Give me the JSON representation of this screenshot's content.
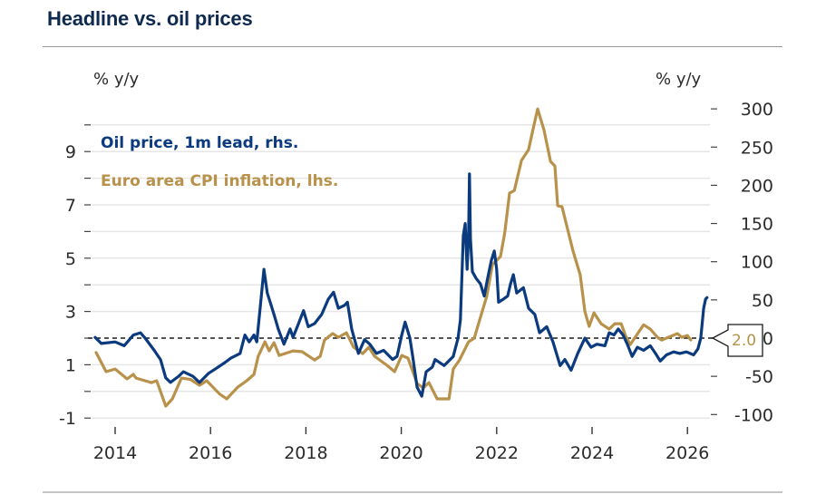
{
  "header": {
    "title": "Headline vs. oil prices"
  },
  "chart_data": {
    "type": "line",
    "title": "Headline vs. oil prices",
    "left_axis": {
      "unit_label": "% y/y",
      "range": [
        -1,
        10
      ],
      "tick_labels": [
        "-1",
        "1",
        "3",
        "5",
        "7",
        "9"
      ],
      "tick_values": [
        -1,
        0,
        1,
        2,
        3,
        4,
        5,
        6,
        7,
        8,
        9,
        10
      ]
    },
    "right_axis": {
      "unit_label": "% y/y",
      "range": [
        -100,
        300
      ],
      "tick_labels": [
        "-100",
        "-50",
        "0",
        "50",
        "100",
        "150",
        "200",
        "250",
        "300"
      ],
      "tick_values": [
        -100,
        -50,
        0,
        50,
        100,
        150,
        200,
        250,
        300
      ]
    },
    "x_axis": {
      "range": [
        2013.5,
        2026.6
      ],
      "tick_labels": [
        "2014",
        "2016",
        "2018",
        "2020",
        "2022",
        "2024",
        "2026"
      ],
      "tick_values": [
        2014,
        2016,
        2018,
        2020,
        2022,
        2024,
        2026
      ]
    },
    "grid": true,
    "legend_position": "top-left",
    "reference_line": {
      "value": 2.0,
      "axis": "left",
      "style": "dashed",
      "label": "2.0"
    },
    "series": [
      {
        "name": "Oil price, 1m lead, rhs.",
        "axis": "right",
        "color": "#0b3a7e",
        "points": [
          [
            2013.58,
            1
          ],
          [
            2013.71,
            -7
          ],
          [
            2014.0,
            -5
          ],
          [
            2014.19,
            -10
          ],
          [
            2014.38,
            4
          ],
          [
            2014.53,
            7
          ],
          [
            2014.63,
            0
          ],
          [
            2014.82,
            -16
          ],
          [
            2014.95,
            -28
          ],
          [
            2015.06,
            -52
          ],
          [
            2015.16,
            -58
          ],
          [
            2015.33,
            -50
          ],
          [
            2015.43,
            -44
          ],
          [
            2015.63,
            -50
          ],
          [
            2015.77,
            -58
          ],
          [
            2015.96,
            -46
          ],
          [
            2016.11,
            -40
          ],
          [
            2016.3,
            -32
          ],
          [
            2016.43,
            -26
          ],
          [
            2016.62,
            -20
          ],
          [
            2016.72,
            4
          ],
          [
            2016.81,
            -5
          ],
          [
            2016.91,
            4
          ],
          [
            2016.97,
            -5
          ],
          [
            2017.04,
            39
          ],
          [
            2017.12,
            90
          ],
          [
            2017.19,
            59
          ],
          [
            2017.25,
            47
          ],
          [
            2017.33,
            31
          ],
          [
            2017.42,
            12
          ],
          [
            2017.54,
            -8
          ],
          [
            2017.67,
            12
          ],
          [
            2017.73,
            1
          ],
          [
            2017.82,
            15
          ],
          [
            2017.95,
            36
          ],
          [
            2018.05,
            15
          ],
          [
            2018.18,
            19
          ],
          [
            2018.33,
            31
          ],
          [
            2018.47,
            51
          ],
          [
            2018.58,
            60
          ],
          [
            2018.68,
            39
          ],
          [
            2018.81,
            43
          ],
          [
            2018.87,
            47
          ],
          [
            2018.96,
            12
          ],
          [
            2019.1,
            -20
          ],
          [
            2019.23,
            -2
          ],
          [
            2019.34,
            -8
          ],
          [
            2019.48,
            -20
          ],
          [
            2019.63,
            -16
          ],
          [
            2019.82,
            -28
          ],
          [
            2019.91,
            -24
          ],
          [
            2020.01,
            4
          ],
          [
            2020.08,
            21
          ],
          [
            2020.18,
            0
          ],
          [
            2020.24,
            -24
          ],
          [
            2020.33,
            -64
          ],
          [
            2020.43,
            -76
          ],
          [
            2020.52,
            -44
          ],
          [
            2020.65,
            -38
          ],
          [
            2020.71,
            -28
          ],
          [
            2020.9,
            -36
          ],
          [
            2021.09,
            -24
          ],
          [
            2021.19,
            0
          ],
          [
            2021.24,
            24
          ],
          [
            2021.3,
            134
          ],
          [
            2021.34,
            150
          ],
          [
            2021.38,
            90
          ],
          [
            2021.41,
            134
          ],
          [
            2021.43,
            215
          ],
          [
            2021.45,
            130
          ],
          [
            2021.49,
            87
          ],
          [
            2021.57,
            78
          ],
          [
            2021.66,
            71
          ],
          [
            2021.74,
            55
          ],
          [
            2021.81,
            78
          ],
          [
            2021.89,
            102
          ],
          [
            2021.95,
            114
          ],
          [
            2022.0,
            90
          ],
          [
            2022.04,
            47
          ],
          [
            2022.14,
            51
          ],
          [
            2022.23,
            55
          ],
          [
            2022.29,
            71
          ],
          [
            2022.35,
            83
          ],
          [
            2022.42,
            59
          ],
          [
            2022.56,
            66
          ],
          [
            2022.67,
            39
          ],
          [
            2022.8,
            31
          ],
          [
            2022.9,
            7
          ],
          [
            2023.05,
            15
          ],
          [
            2023.18,
            -5
          ],
          [
            2023.33,
            -36
          ],
          [
            2023.43,
            -28
          ],
          [
            2023.56,
            -42
          ],
          [
            2023.7,
            -20
          ],
          [
            2023.85,
            0
          ],
          [
            2023.98,
            -12
          ],
          [
            2024.1,
            -8
          ],
          [
            2024.27,
            -10
          ],
          [
            2024.36,
            7
          ],
          [
            2024.46,
            4
          ],
          [
            2024.55,
            12
          ],
          [
            2024.65,
            4
          ],
          [
            2024.74,
            -8
          ],
          [
            2024.84,
            -24
          ],
          [
            2024.95,
            -12
          ],
          [
            2025.08,
            -16
          ],
          [
            2025.22,
            -10
          ],
          [
            2025.33,
            -20
          ],
          [
            2025.43,
            -30
          ],
          [
            2025.56,
            -22
          ],
          [
            2025.71,
            -18
          ],
          [
            2025.84,
            -20
          ],
          [
            2025.98,
            -18
          ],
          [
            2026.13,
            -22
          ],
          [
            2026.22,
            -14
          ],
          [
            2026.28,
            0
          ],
          [
            2026.34,
            39
          ],
          [
            2026.38,
            51
          ],
          [
            2026.41,
            53
          ]
        ]
      },
      {
        "name": "Euro area CPI inflation, lhs.",
        "axis": "left",
        "color": "#b8914a",
        "points": [
          [
            2013.6,
            1.46
          ],
          [
            2013.81,
            0.74
          ],
          [
            2014.0,
            0.84
          ],
          [
            2014.25,
            0.47
          ],
          [
            2014.38,
            0.64
          ],
          [
            2014.44,
            0.5
          ],
          [
            2014.76,
            0.33
          ],
          [
            2014.87,
            0.4
          ],
          [
            2015.06,
            -0.55
          ],
          [
            2015.2,
            -0.28
          ],
          [
            2015.39,
            0.5
          ],
          [
            2015.58,
            0.45
          ],
          [
            2015.77,
            0.23
          ],
          [
            2015.92,
            0.4
          ],
          [
            2016.19,
            -0.1
          ],
          [
            2016.34,
            -0.28
          ],
          [
            2016.57,
            0.16
          ],
          [
            2016.76,
            0.4
          ],
          [
            2016.91,
            0.64
          ],
          [
            2017.0,
            1.32
          ],
          [
            2017.14,
            1.86
          ],
          [
            2017.23,
            1.52
          ],
          [
            2017.33,
            1.83
          ],
          [
            2017.44,
            1.35
          ],
          [
            2017.73,
            1.52
          ],
          [
            2017.92,
            1.49
          ],
          [
            2018.18,
            1.18
          ],
          [
            2018.3,
            1.32
          ],
          [
            2018.39,
            1.93
          ],
          [
            2018.56,
            2.17
          ],
          [
            2018.68,
            2.03
          ],
          [
            2018.85,
            2.2
          ],
          [
            2019.0,
            1.66
          ],
          [
            2019.19,
            1.42
          ],
          [
            2019.32,
            1.66
          ],
          [
            2019.44,
            1.32
          ],
          [
            2019.7,
            0.98
          ],
          [
            2019.86,
            0.74
          ],
          [
            2020.01,
            1.35
          ],
          [
            2020.14,
            1.25
          ],
          [
            2020.33,
            0.3
          ],
          [
            2020.46,
            0.13
          ],
          [
            2020.58,
            0.33
          ],
          [
            2020.75,
            -0.28
          ],
          [
            2021.0,
            -0.28
          ],
          [
            2021.09,
            0.84
          ],
          [
            2021.22,
            1.18
          ],
          [
            2021.41,
            1.86
          ],
          [
            2021.53,
            2.0
          ],
          [
            2021.66,
            2.78
          ],
          [
            2021.79,
            3.56
          ],
          [
            2021.91,
            4.76
          ],
          [
            2022.08,
            5.06
          ],
          [
            2022.17,
            5.95
          ],
          [
            2022.27,
            7.44
          ],
          [
            2022.37,
            7.54
          ],
          [
            2022.52,
            8.67
          ],
          [
            2022.67,
            9.07
          ],
          [
            2022.76,
            9.82
          ],
          [
            2022.86,
            10.6
          ],
          [
            2022.99,
            9.82
          ],
          [
            2023.13,
            8.63
          ],
          [
            2023.22,
            8.46
          ],
          [
            2023.28,
            6.97
          ],
          [
            2023.37,
            6.93
          ],
          [
            2023.6,
            5.27
          ],
          [
            2023.75,
            4.38
          ],
          [
            2023.85,
            3.0
          ],
          [
            2023.94,
            2.44
          ],
          [
            2024.04,
            2.95
          ],
          [
            2024.19,
            2.54
          ],
          [
            2024.36,
            2.34
          ],
          [
            2024.48,
            2.54
          ],
          [
            2024.61,
            2.54
          ],
          [
            2024.7,
            2.1
          ],
          [
            2024.8,
            1.76
          ],
          [
            2024.93,
            2.1
          ],
          [
            2025.08,
            2.5
          ],
          [
            2025.22,
            2.34
          ],
          [
            2025.37,
            2.03
          ],
          [
            2025.46,
            1.93
          ],
          [
            2025.6,
            2.03
          ],
          [
            2025.79,
            2.17
          ],
          [
            2025.88,
            2.03
          ],
          [
            2026.0,
            2.1
          ],
          [
            2026.07,
            1.93
          ]
        ]
      }
    ],
    "callout": {
      "text": "2.0",
      "color": "#b8914a"
    }
  },
  "colors": {
    "title": "#0f2a4f",
    "oil": "#0b3a7e",
    "cpi": "#b8914a"
  }
}
